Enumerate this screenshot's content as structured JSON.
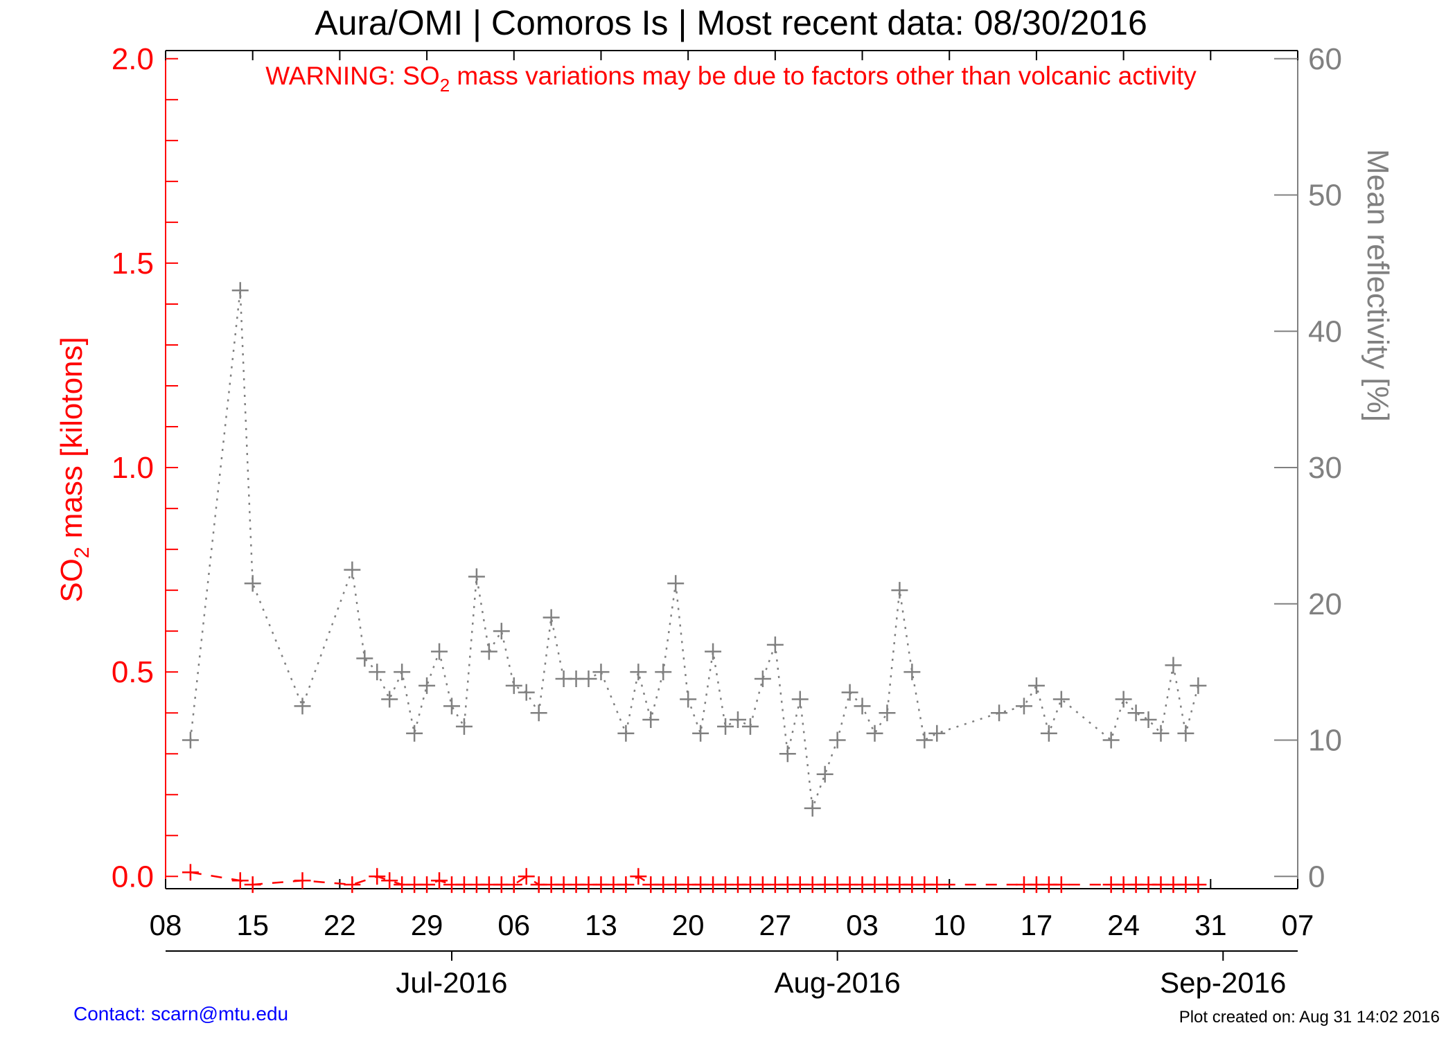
{
  "title": "Aura/OMI | Comoros Is | Most recent data: 08/30/2016",
  "warning": {
    "prefix": "WARNING: SO",
    "sub": "2",
    "suffix": " mass variations may be due to factors other than volcanic activity"
  },
  "left_axis": {
    "label_prefix": "SO",
    "label_sub": "2",
    "label_suffix": " mass [kilotons]",
    "color": "#ff0000"
  },
  "right_axis": {
    "label": "Mean reflectivity [%]",
    "color": "#808080"
  },
  "footer": {
    "contact": "Contact: scarn@mtu.edu",
    "created": "Plot created on: Aug 31 14:02 2016"
  },
  "chart_data": {
    "type": "scatter",
    "x_axis": {
      "range": [
        "2016-06-08",
        "2016-09-07"
      ],
      "tick_dates": [
        "2016-06-08",
        "2016-06-15",
        "2016-06-22",
        "2016-06-29",
        "2016-07-06",
        "2016-07-13",
        "2016-07-20",
        "2016-07-27",
        "2016-08-03",
        "2016-08-10",
        "2016-08-17",
        "2016-08-24",
        "2016-08-31",
        "2016-09-07"
      ],
      "tick_labels": [
        "08",
        "15",
        "22",
        "29",
        "06",
        "13",
        "20",
        "27",
        "03",
        "10",
        "17",
        "24",
        "31",
        "07"
      ],
      "month_dates": [
        "2016-07-01",
        "2016-08-01",
        "2016-09-01"
      ],
      "month_labels": [
        "Jul-2016",
        "Aug-2016",
        "Sep-2016"
      ]
    },
    "y_left": {
      "range": [
        -0.03,
        2.02
      ],
      "ticks": [
        0.0,
        0.5,
        1.0,
        1.5,
        2.0
      ],
      "tick_labels": [
        "0.0",
        "0.5",
        "1.0",
        "1.5",
        "2.0"
      ]
    },
    "y_right": {
      "range": [
        0,
        60
      ],
      "ticks": [
        0,
        10,
        20,
        30,
        40,
        50,
        60
      ],
      "tick_labels": [
        "0",
        "10",
        "20",
        "30",
        "40",
        "50",
        "60"
      ]
    },
    "grid": false,
    "series": [
      {
        "axis": "right",
        "color": "#808080",
        "marker": "plus",
        "line": "dotted",
        "dates": [
          "2016-06-10",
          "2016-06-14",
          "2016-06-15",
          "2016-06-19",
          "2016-06-23",
          "2016-06-24",
          "2016-06-25",
          "2016-06-26",
          "2016-06-27",
          "2016-06-28",
          "2016-06-29",
          "2016-06-30",
          "2016-07-01",
          "2016-07-02",
          "2016-07-03",
          "2016-07-04",
          "2016-07-05",
          "2016-07-06",
          "2016-07-07",
          "2016-07-08",
          "2016-07-09",
          "2016-07-10",
          "2016-07-11",
          "2016-07-12",
          "2016-07-13",
          "2016-07-15",
          "2016-07-16",
          "2016-07-17",
          "2016-07-18",
          "2016-07-19",
          "2016-07-20",
          "2016-07-21",
          "2016-07-22",
          "2016-07-23",
          "2016-07-24",
          "2016-07-25",
          "2016-07-26",
          "2016-07-27",
          "2016-07-28",
          "2016-07-29",
          "2016-07-30",
          "2016-07-31",
          "2016-08-01",
          "2016-08-02",
          "2016-08-03",
          "2016-08-04",
          "2016-08-05",
          "2016-08-06",
          "2016-08-07",
          "2016-08-08",
          "2016-08-09",
          "2016-08-14",
          "2016-08-16",
          "2016-08-17",
          "2016-08-18",
          "2016-08-19",
          "2016-08-23",
          "2016-08-24",
          "2016-08-25",
          "2016-08-26",
          "2016-08-27",
          "2016-08-28",
          "2016-08-29",
          "2016-08-30"
        ],
        "values": [
          10,
          43,
          21.5,
          12.5,
          22.5,
          16,
          15,
          13,
          15,
          10.5,
          14,
          16.5,
          12.5,
          11,
          22,
          16.5,
          18,
          14,
          13.5,
          12,
          19,
          14.5,
          14.5,
          14.5,
          15,
          10.5,
          15,
          11.5,
          15,
          21.5,
          13,
          10.5,
          16.5,
          11,
          11.5,
          11,
          14.5,
          17,
          9,
          13,
          5,
          7.5,
          10,
          13.5,
          12.5,
          10.5,
          12,
          21,
          15,
          10,
          10.5,
          12,
          12.5,
          14,
          10.5,
          13,
          10,
          13,
          12,
          11.5,
          10.5,
          15.5,
          10.5,
          14
        ]
      },
      {
        "axis": "left",
        "color": "#ff0000",
        "marker": "plus",
        "line": "dashed",
        "dates": [
          "2016-06-10",
          "2016-06-14",
          "2016-06-15",
          "2016-06-19",
          "2016-06-23",
          "2016-06-25",
          "2016-06-26",
          "2016-06-27",
          "2016-06-28",
          "2016-06-29",
          "2016-06-30",
          "2016-07-01",
          "2016-07-02",
          "2016-07-03",
          "2016-07-04",
          "2016-07-05",
          "2016-07-06",
          "2016-07-07",
          "2016-07-08",
          "2016-07-09",
          "2016-07-10",
          "2016-07-11",
          "2016-07-12",
          "2016-07-13",
          "2016-07-14",
          "2016-07-15",
          "2016-07-16",
          "2016-07-17",
          "2016-07-18",
          "2016-07-19",
          "2016-07-20",
          "2016-07-21",
          "2016-07-22",
          "2016-07-23",
          "2016-07-24",
          "2016-07-25",
          "2016-07-26",
          "2016-07-27",
          "2016-07-28",
          "2016-07-29",
          "2016-07-30",
          "2016-07-31",
          "2016-08-01",
          "2016-08-02",
          "2016-08-03",
          "2016-08-04",
          "2016-08-05",
          "2016-08-06",
          "2016-08-07",
          "2016-08-08",
          "2016-08-09",
          "2016-08-16",
          "2016-08-17",
          "2016-08-18",
          "2016-08-19",
          "2016-08-23",
          "2016-08-24",
          "2016-08-25",
          "2016-08-26",
          "2016-08-27",
          "2016-08-28",
          "2016-08-29",
          "2016-08-30"
        ],
        "values": [
          0.01,
          -0.01,
          -0.02,
          -0.01,
          -0.02,
          0.0,
          -0.01,
          -0.02,
          -0.02,
          -0.02,
          -0.01,
          -0.02,
          -0.02,
          -0.02,
          -0.02,
          -0.02,
          -0.02,
          0.0,
          -0.02,
          -0.02,
          -0.02,
          -0.02,
          -0.02,
          -0.02,
          -0.02,
          -0.02,
          0.0,
          -0.02,
          -0.02,
          -0.02,
          -0.02,
          -0.02,
          -0.02,
          -0.02,
          -0.02,
          -0.02,
          -0.02,
          -0.02,
          -0.02,
          -0.02,
          -0.02,
          -0.02,
          -0.02,
          -0.02,
          -0.02,
          -0.02,
          -0.02,
          -0.02,
          -0.02,
          -0.02,
          -0.02,
          -0.02,
          -0.02,
          -0.02,
          -0.02,
          -0.02,
          -0.02,
          -0.02,
          -0.02,
          -0.02,
          -0.02,
          -0.02,
          -0.02
        ]
      }
    ]
  }
}
